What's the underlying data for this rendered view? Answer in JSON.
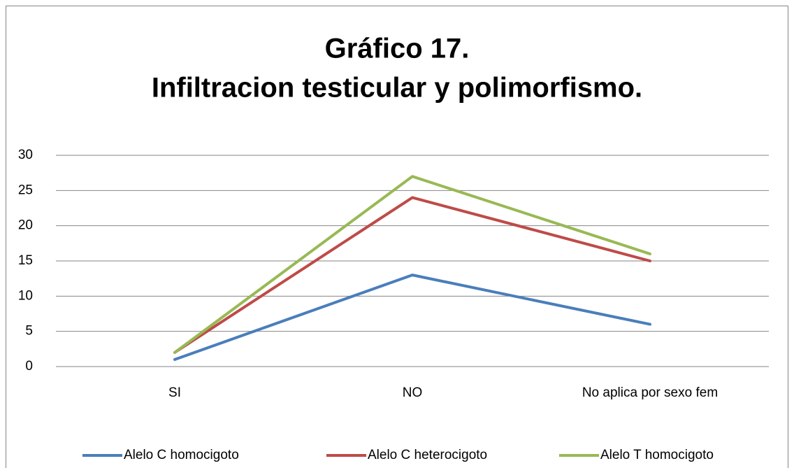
{
  "chart_data": {
    "type": "line",
    "title": [
      "Gráfico 17.",
      "Infiltracion testicular y polimorfismo."
    ],
    "categories": [
      "SI",
      "NO",
      "No aplica por sexo fem"
    ],
    "series": [
      {
        "name": "Alelo C homocigoto",
        "color": "#4a7ebb",
        "values": [
          1,
          13,
          6
        ]
      },
      {
        "name": "Alelo C heterocigoto",
        "color": "#be4b48",
        "values": [
          2,
          24,
          15
        ]
      },
      {
        "name": "Alelo T homocigoto",
        "color": "#98b954",
        "values": [
          2,
          27,
          16
        ]
      }
    ],
    "ylim": [
      0,
      30
    ],
    "yticks": [
      0,
      5,
      10,
      15,
      20,
      25,
      30
    ],
    "grid": true,
    "legend": "bottom"
  }
}
